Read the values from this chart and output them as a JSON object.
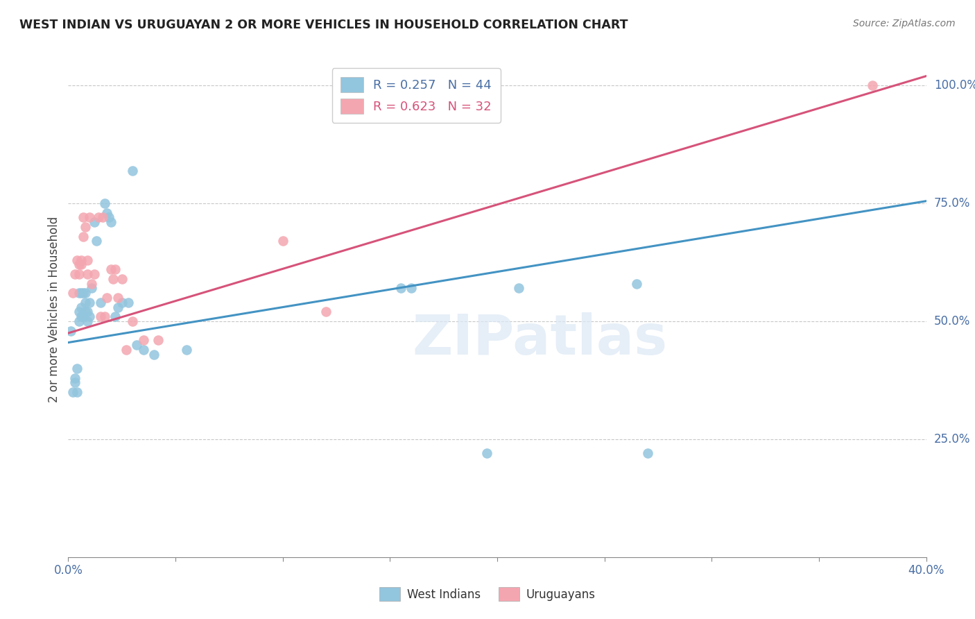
{
  "title": "WEST INDIAN VS URUGUAYAN 2 OR MORE VEHICLES IN HOUSEHOLD CORRELATION CHART",
  "source": "Source: ZipAtlas.com",
  "ylabel": "2 or more Vehicles in Household",
  "xlim": [
    0.0,
    0.4
  ],
  "ylim": [
    0.0,
    1.05
  ],
  "y_tick_vals_right": [
    1.0,
    0.75,
    0.5,
    0.25
  ],
  "y_tick_labels_right": [
    "100.0%",
    "75.0%",
    "50.0%",
    "25.0%"
  ],
  "legend_r": [
    "R = 0.257",
    "R = 0.623"
  ],
  "legend_n": [
    "N = 44",
    "N = 32"
  ],
  "blue_color": "#92c5de",
  "pink_color": "#f4a6b0",
  "blue_line_color": "#4393c3",
  "pink_line_color": "#d6537a",
  "watermark_text": "ZIPatlas",
  "west_indians_x": [
    0.001,
    0.002,
    0.003,
    0.003,
    0.004,
    0.004,
    0.005,
    0.005,
    0.005,
    0.006,
    0.006,
    0.006,
    0.007,
    0.007,
    0.008,
    0.008,
    0.008,
    0.009,
    0.009,
    0.01,
    0.01,
    0.011,
    0.012,
    0.013,
    0.015,
    0.017,
    0.018,
    0.019,
    0.02,
    0.022,
    0.023,
    0.025,
    0.028,
    0.03,
    0.032,
    0.035,
    0.04,
    0.055,
    0.155,
    0.16,
    0.195,
    0.21,
    0.265,
    0.27
  ],
  "west_indians_y": [
    0.48,
    0.35,
    0.37,
    0.38,
    0.35,
    0.4,
    0.52,
    0.5,
    0.56,
    0.51,
    0.53,
    0.56,
    0.51,
    0.56,
    0.52,
    0.54,
    0.56,
    0.52,
    0.5,
    0.51,
    0.54,
    0.57,
    0.71,
    0.67,
    0.54,
    0.75,
    0.73,
    0.72,
    0.71,
    0.51,
    0.53,
    0.54,
    0.54,
    0.82,
    0.45,
    0.44,
    0.43,
    0.44,
    0.57,
    0.57,
    0.22,
    0.57,
    0.58,
    0.22
  ],
  "uruguayans_x": [
    0.002,
    0.003,
    0.004,
    0.005,
    0.005,
    0.006,
    0.006,
    0.007,
    0.007,
    0.008,
    0.009,
    0.009,
    0.01,
    0.011,
    0.012,
    0.014,
    0.015,
    0.016,
    0.017,
    0.018,
    0.02,
    0.021,
    0.022,
    0.023,
    0.025,
    0.027,
    0.03,
    0.035,
    0.042,
    0.1,
    0.12,
    0.375
  ],
  "uruguayans_y": [
    0.56,
    0.6,
    0.63,
    0.62,
    0.6,
    0.62,
    0.63,
    0.72,
    0.68,
    0.7,
    0.6,
    0.63,
    0.72,
    0.58,
    0.6,
    0.72,
    0.51,
    0.72,
    0.51,
    0.55,
    0.61,
    0.59,
    0.61,
    0.55,
    0.59,
    0.44,
    0.5,
    0.46,
    0.46,
    0.67,
    0.52,
    1.0
  ],
  "blue_trend_x": [
    0.0,
    0.4
  ],
  "blue_trend_y": [
    0.455,
    0.755
  ],
  "pink_trend_x": [
    0.0,
    0.4
  ],
  "pink_trend_y": [
    0.475,
    1.02
  ],
  "grid_color": "#c8c8c8",
  "background_color": "#ffffff",
  "legend_color": "#4a6fa5"
}
